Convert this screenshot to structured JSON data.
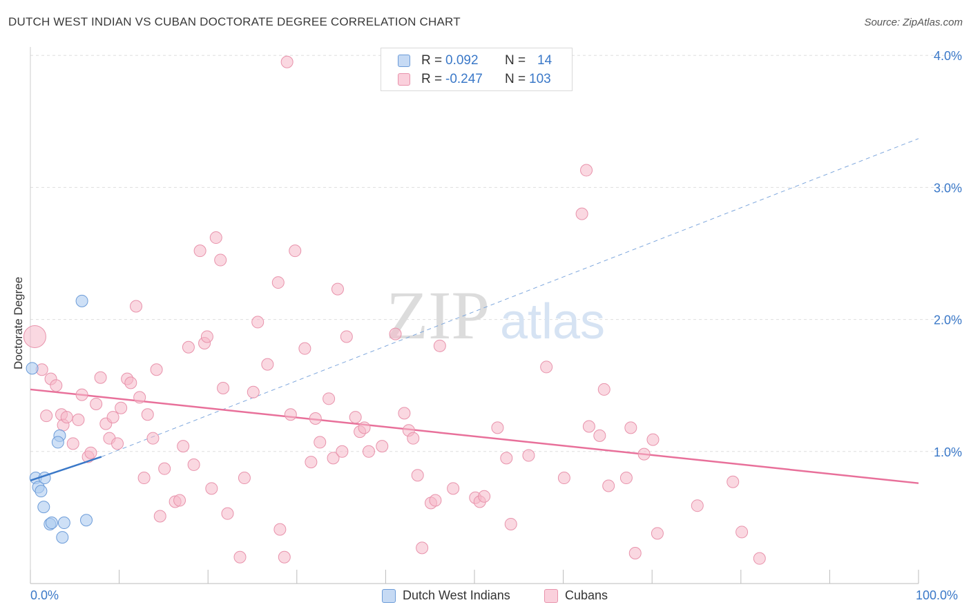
{
  "title": "DUTCH WEST INDIAN VS CUBAN DOCTORATE DEGREE CORRELATION CHART",
  "source": "Source: ZipAtlas.com",
  "watermark": {
    "zip": "ZIP",
    "atlas": "atlas"
  },
  "legend_top": [
    {
      "r_label": "R =",
      "r_value": "0.092",
      "n_label": "N =",
      "n_value": "14"
    },
    {
      "r_label": "R =",
      "r_value": "-0.247",
      "n_label": "N =",
      "n_value": "103"
    }
  ],
  "colors": {
    "blue_fill": "#aecbf0",
    "blue_stroke": "#6b9bd8",
    "blue_line": "#3a78c8",
    "pink_fill": "#f6b8c9",
    "pink_stroke": "#e892ab",
    "pink_line": "#e8709a",
    "grid": "#dddddd",
    "axis_text": "#3a78c8"
  },
  "chart_data": {
    "type": "scatter",
    "title": "DUTCH WEST INDIAN VS CUBAN DOCTORATE DEGREE CORRELATION CHART",
    "xlabel": "",
    "ylabel": "Doctorate Degree",
    "xlim": [
      0,
      100
    ],
    "ylim": [
      0,
      4.15
    ],
    "x_tick_labels": [
      "0.0%",
      "100.0%"
    ],
    "y_ticks": [
      1.0,
      2.0,
      3.0,
      4.0
    ],
    "y_tick_labels": [
      "1.0%",
      "2.0%",
      "3.0%",
      "4.0%"
    ],
    "grid": true,
    "legend_position": "bottom-center",
    "series": [
      {
        "name": "Dutch West Indians",
        "color": "#aecbf0",
        "r": 0.092,
        "n": 14,
        "trend": {
          "x": [
            0,
            8
          ],
          "y": [
            0.78,
            0.96
          ],
          "dashed_extension": {
            "x": [
              8,
              100
            ],
            "y": [
              0.96,
              3.37
            ]
          }
        },
        "points": [
          [
            0.2,
            1.63
          ],
          [
            0.6,
            0.8
          ],
          [
            0.9,
            0.73
          ],
          [
            1.2,
            0.7
          ],
          [
            1.6,
            0.8
          ],
          [
            1.5,
            0.58
          ],
          [
            2.2,
            0.45
          ],
          [
            2.4,
            0.46
          ],
          [
            3.6,
            0.35
          ],
          [
            3.8,
            0.46
          ],
          [
            3.3,
            1.12
          ],
          [
            3.1,
            1.07
          ],
          [
            6.3,
            0.48
          ],
          [
            5.8,
            2.14
          ]
        ]
      },
      {
        "name": "Cubans",
        "color": "#f6b8c9",
        "r": -0.247,
        "n": 103,
        "trend": {
          "x": [
            0,
            100
          ],
          "y": [
            1.47,
            0.76
          ]
        },
        "points": [
          [
            0.5,
            1.87
          ],
          [
            1.3,
            1.62
          ],
          [
            1.8,
            1.27
          ],
          [
            2.3,
            1.55
          ],
          [
            2.9,
            1.5
          ],
          [
            3.5,
            1.28
          ],
          [
            3.7,
            1.2
          ],
          [
            4.1,
            1.26
          ],
          [
            4.8,
            1.06
          ],
          [
            5.4,
            1.24
          ],
          [
            5.8,
            1.43
          ],
          [
            6.5,
            0.96
          ],
          [
            6.8,
            0.99
          ],
          [
            7.4,
            1.36
          ],
          [
            7.9,
            1.56
          ],
          [
            8.5,
            1.21
          ],
          [
            8.9,
            1.1
          ],
          [
            9.3,
            1.26
          ],
          [
            9.8,
            1.06
          ],
          [
            10.2,
            1.33
          ],
          [
            10.9,
            1.55
          ],
          [
            11.3,
            1.52
          ],
          [
            11.9,
            2.1
          ],
          [
            12.3,
            1.41
          ],
          [
            12.8,
            0.8
          ],
          [
            13.2,
            1.28
          ],
          [
            13.8,
            1.1
          ],
          [
            14.2,
            1.62
          ],
          [
            14.6,
            0.51
          ],
          [
            15.1,
            0.87
          ],
          [
            16.3,
            0.62
          ],
          [
            16.8,
            0.63
          ],
          [
            17.2,
            1.04
          ],
          [
            17.8,
            1.79
          ],
          [
            18.4,
            0.9
          ],
          [
            19.1,
            2.52
          ],
          [
            19.6,
            1.82
          ],
          [
            19.9,
            1.87
          ],
          [
            20.4,
            0.72
          ],
          [
            20.9,
            2.62
          ],
          [
            21.4,
            2.45
          ],
          [
            21.7,
            1.48
          ],
          [
            22.2,
            0.53
          ],
          [
            23.6,
            0.2
          ],
          [
            24.1,
            0.8
          ],
          [
            25.1,
            1.45
          ],
          [
            25.6,
            1.98
          ],
          [
            26.7,
            1.66
          ],
          [
            27.9,
            2.28
          ],
          [
            28.1,
            0.41
          ],
          [
            28.6,
            0.2
          ],
          [
            28.9,
            3.95
          ],
          [
            29.3,
            1.28
          ],
          [
            29.8,
            2.52
          ],
          [
            30.9,
            1.78
          ],
          [
            31.6,
            0.92
          ],
          [
            32.1,
            1.25
          ],
          [
            32.6,
            1.07
          ],
          [
            33.6,
            1.4
          ],
          [
            34.1,
            0.95
          ],
          [
            34.6,
            2.23
          ],
          [
            35.1,
            1.0
          ],
          [
            35.6,
            1.87
          ],
          [
            36.6,
            1.26
          ],
          [
            37.1,
            1.15
          ],
          [
            37.6,
            1.18
          ],
          [
            38.1,
            1.0
          ],
          [
            39.6,
            1.04
          ],
          [
            41.1,
            1.89
          ],
          [
            42.1,
            1.29
          ],
          [
            42.6,
            1.16
          ],
          [
            43.1,
            1.1
          ],
          [
            43.6,
            0.82
          ],
          [
            44.1,
            0.27
          ],
          [
            45.1,
            0.61
          ],
          [
            45.6,
            0.63
          ],
          [
            46.1,
            1.8
          ],
          [
            47.6,
            0.72
          ],
          [
            50.1,
            0.65
          ],
          [
            50.6,
            0.62
          ],
          [
            51.1,
            0.66
          ],
          [
            52.6,
            1.18
          ],
          [
            53.6,
            0.95
          ],
          [
            54.1,
            0.45
          ],
          [
            56.1,
            0.97
          ],
          [
            58.1,
            1.64
          ],
          [
            60.1,
            0.8
          ],
          [
            62.1,
            2.8
          ],
          [
            62.6,
            3.13
          ],
          [
            62.9,
            1.19
          ],
          [
            64.1,
            1.12
          ],
          [
            64.6,
            1.47
          ],
          [
            65.1,
            0.74
          ],
          [
            67.1,
            0.8
          ],
          [
            67.6,
            1.18
          ],
          [
            68.1,
            0.23
          ],
          [
            69.1,
            0.98
          ],
          [
            70.1,
            1.09
          ],
          [
            70.6,
            0.38
          ],
          [
            75.1,
            0.59
          ],
          [
            79.1,
            0.77
          ],
          [
            80.1,
            0.39
          ],
          [
            82.1,
            0.19
          ]
        ]
      }
    ]
  },
  "bottom_legend": [
    "Dutch West Indians",
    "Cubans"
  ]
}
